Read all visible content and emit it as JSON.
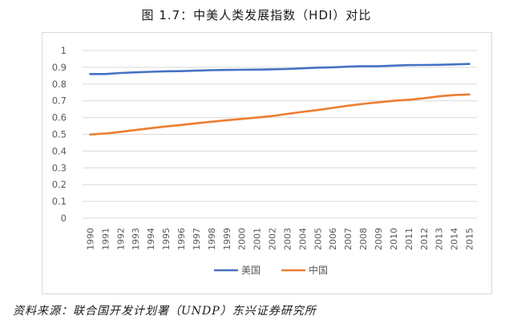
{
  "figure": {
    "title": "图 1.7：中美人类发展指数（HDI）对比",
    "source": "资料来源：联合国开发计划署（UNDP）东兴证券研究所"
  },
  "chart_data": {
    "type": "line",
    "title": "图 1.7：中美人类发展指数（HDI）对比",
    "xlabel": "",
    "ylabel": "",
    "x": [
      "1990",
      "1991",
      "1992",
      "1993",
      "1994",
      "1995",
      "1996",
      "1997",
      "1998",
      "1999",
      "2000",
      "2001",
      "2002",
      "2003",
      "2004",
      "2005",
      "2006",
      "2007",
      "2008",
      "2009",
      "2010",
      "2011",
      "2012",
      "2013",
      "2014",
      "2015"
    ],
    "y_ticks": [
      "0",
      "0.1",
      "0.2",
      "0.3",
      "0.4",
      "0.5",
      "0.6",
      "0.7",
      "0.8",
      "0.9",
      "1"
    ],
    "ylim": [
      0,
      1
    ],
    "grid": true,
    "legend_position": "bottom",
    "series": [
      {
        "name": "美国",
        "color": "#4472c4",
        "values": [
          0.86,
          0.86,
          0.866,
          0.87,
          0.873,
          0.876,
          0.877,
          0.88,
          0.883,
          0.884,
          0.885,
          0.886,
          0.888,
          0.89,
          0.894,
          0.898,
          0.9,
          0.904,
          0.906,
          0.906,
          0.91,
          0.913,
          0.914,
          0.915,
          0.917,
          0.92
        ]
      },
      {
        "name": "中国",
        "color": "#ed7d31",
        "values": [
          0.499,
          0.505,
          0.515,
          0.526,
          0.537,
          0.547,
          0.556,
          0.566,
          0.575,
          0.584,
          0.592,
          0.6,
          0.609,
          0.622,
          0.634,
          0.645,
          0.658,
          0.671,
          0.682,
          0.691,
          0.7,
          0.706,
          0.715,
          0.727,
          0.734,
          0.738
        ]
      }
    ]
  }
}
